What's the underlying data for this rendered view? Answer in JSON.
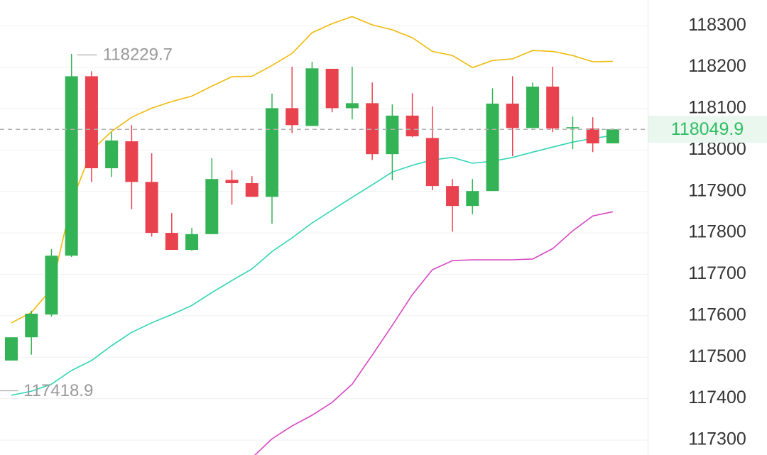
{
  "chart_data": {
    "type": "candlestick",
    "ylim": [
      117264,
      118362
    ],
    "yticks": [
      117300,
      117400,
      117500,
      117600,
      117700,
      117800,
      117900,
      118000,
      118100,
      118200,
      118300
    ],
    "grid": true,
    "up_color": "#34b356",
    "down_color": "#e8424f",
    "open": [
      117492,
      117548,
      117603,
      117745,
      118178,
      117956,
      118021,
      117923,
      117800,
      117759,
      117797,
      117928,
      117920,
      117887,
      118101,
      118058,
      118196,
      118101,
      118113,
      117990,
      118083,
      118029,
      117913,
      117865,
      117901,
      118112,
      118053,
      118153,
      118052,
      118052,
      118016
    ],
    "high": [
      117548,
      117612,
      117761,
      118232,
      118190,
      118043,
      118060,
      117992,
      117848,
      117812,
      117980,
      117951,
      117937,
      118136,
      118201,
      118213,
      118196,
      118201,
      118163,
      118110,
      118137,
      118105,
      117930,
      117930,
      118149,
      118178,
      118163,
      118201,
      118081,
      118079,
      118052
    ],
    "low": [
      117492,
      117506,
      117598,
      117742,
      117923,
      117935,
      117857,
      117791,
      117759,
      117757,
      117797,
      117868,
      117887,
      117822,
      118041,
      118058,
      118091,
      118074,
      117976,
      117927,
      118031,
      117903,
      117803,
      117845,
      117901,
      117985,
      118053,
      118043,
      118002,
      117995,
      118016
    ],
    "close": [
      117548,
      117605,
      117745,
      118178,
      117956,
      118023,
      117923,
      117800,
      117759,
      117797,
      117930,
      117920,
      117887,
      118101,
      118060,
      118197,
      118101,
      118113,
      117990,
      118083,
      118033,
      117913,
      117865,
      117901,
      118112,
      118053,
      118153,
      118052,
      118055,
      118016,
      118050
    ],
    "series": [
      {
        "color": "#f0b90b",
        "values": [
          117583,
          117608,
          117665,
          117874,
          117999,
          118045,
          118079,
          118101,
          118117,
          118130,
          118154,
          118177,
          118178,
          118204,
          118233,
          118283,
          118305,
          118322,
          118302,
          118290,
          118271,
          118238,
          118228,
          118199,
          118216,
          118220,
          118240,
          118238,
          118228,
          118213,
          118214
        ]
      },
      {
        "color": "#2fd4b4",
        "values": [
          117408,
          117418,
          117435,
          117468,
          117492,
          117528,
          117560,
          117583,
          117603,
          117625,
          117656,
          117685,
          117713,
          117755,
          117788,
          117824,
          117855,
          117886,
          117916,
          117947,
          117963,
          117976,
          117982,
          117968,
          117973,
          117982,
          117995,
          118007,
          118019,
          118028,
          118035
        ]
      },
      {
        "color": "#d646c4",
        "values": [
          null,
          null,
          null,
          null,
          null,
          null,
          null,
          null,
          null,
          null,
          null,
          null,
          117257,
          117303,
          117334,
          117360,
          117391,
          117435,
          117505,
          117577,
          117651,
          117711,
          117733,
          117735,
          117735,
          117735,
          117737,
          117762,
          117805,
          117841,
          117851
        ]
      }
    ],
    "high_annotation": 118229.7,
    "low_annotation": 117418.9,
    "last_price": 118049.9
  }
}
